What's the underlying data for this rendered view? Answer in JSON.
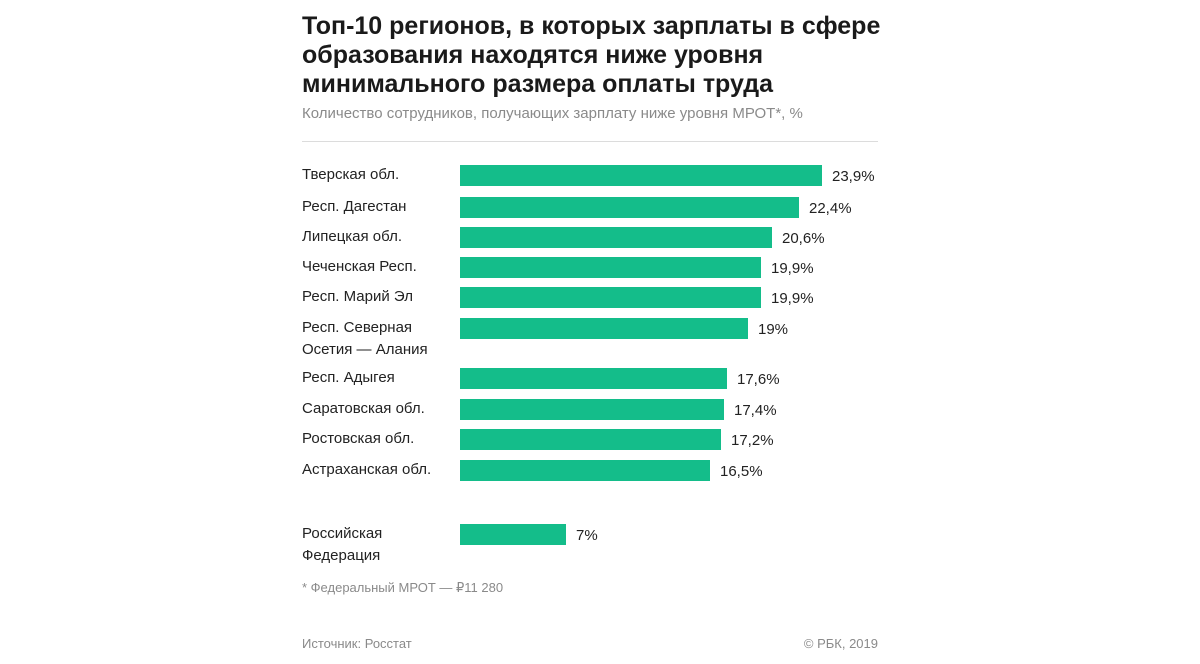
{
  "chart_data": {
    "type": "bar",
    "orientation": "horizontal",
    "title": "Топ-10 регионов, в которых зарплаты в сфере образования находятся ниже уровня минимального размера оплаты труда",
    "subtitle": "Количество сотрудников, получающих зарплату ниже уровня МРОТ*, %",
    "categories": [
      "Тверская обл.",
      "Респ. Дагестан",
      "Липецкая обл.",
      "Чеченская Респ.",
      "Респ. Марий Эл",
      "Респ. Северная Осетия — Алания",
      "Респ. Адыгея",
      "Саратовская обл.",
      "Ростовская обл.",
      "Астраханская обл.",
      "Российская Федерация"
    ],
    "values": [
      23.9,
      22.4,
      20.6,
      19.9,
      19.9,
      19,
      17.6,
      17.4,
      17.2,
      16.5,
      7
    ],
    "value_labels": [
      "23,9%",
      "22,4%",
      "20,6%",
      "19,9%",
      "19,9%",
      "19%",
      "17,6%",
      "17,4%",
      "17,2%",
      "16,5%",
      "7%"
    ],
    "unit": "%",
    "xlim": [
      0,
      23.9
    ],
    "bar_color": "#14bd8a",
    "grid": false,
    "legend": "none"
  },
  "footnote": "* Федеральный МРОТ — ₽11 280",
  "source": "Источник: Росстат",
  "copyright": "© РБК, 2019"
}
